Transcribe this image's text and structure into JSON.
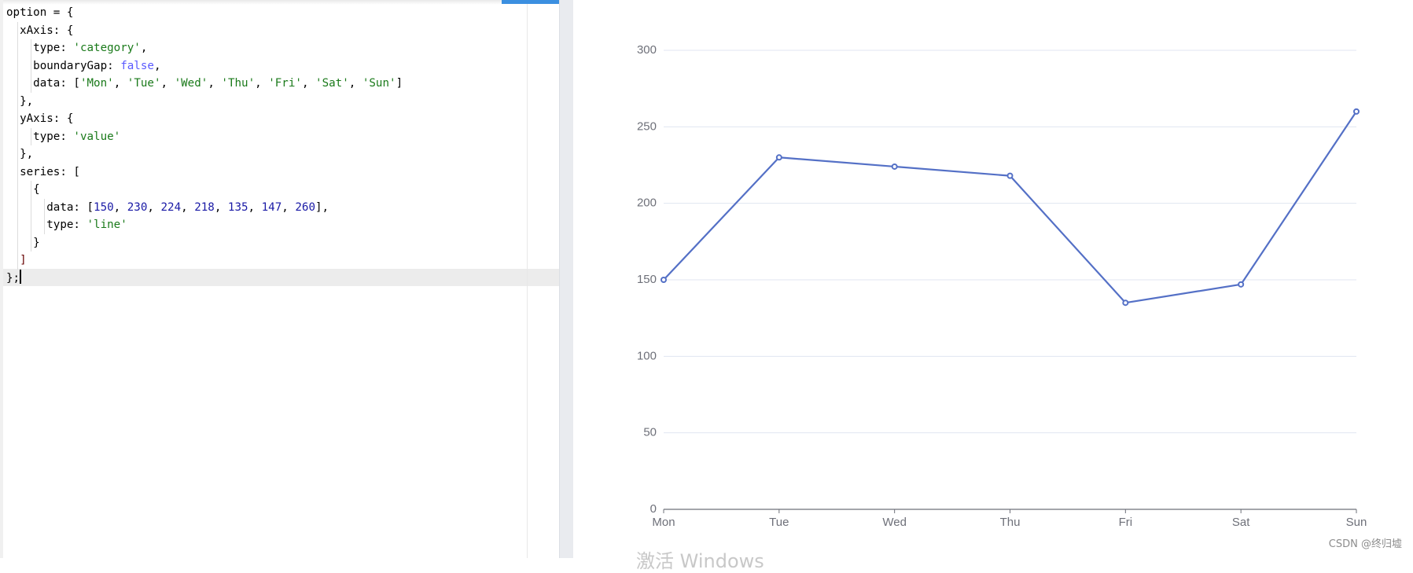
{
  "editor": {
    "code_lines": [
      [
        {
          "t": "option = {"
        }
      ],
      [
        {
          "t": "  xAxis: {"
        }
      ],
      [
        {
          "t": "    type: "
        },
        {
          "t": "'category'",
          "c": "str"
        },
        {
          "t": ","
        }
      ],
      [
        {
          "t": "    boundaryGap: "
        },
        {
          "t": "false",
          "c": "kw"
        },
        {
          "t": ","
        }
      ],
      [
        {
          "t": "    data: ["
        },
        {
          "t": "'Mon'",
          "c": "str"
        },
        {
          "t": ", "
        },
        {
          "t": "'Tue'",
          "c": "str"
        },
        {
          "t": ", "
        },
        {
          "t": "'Wed'",
          "c": "str"
        },
        {
          "t": ", "
        },
        {
          "t": "'Thu'",
          "c": "str"
        },
        {
          "t": ", "
        },
        {
          "t": "'Fri'",
          "c": "str"
        },
        {
          "t": ", "
        },
        {
          "t": "'Sat'",
          "c": "str"
        },
        {
          "t": ", "
        },
        {
          "t": "'Sun'",
          "c": "str"
        },
        {
          "t": "]"
        }
      ],
      [
        {
          "t": "  },"
        }
      ],
      [
        {
          "t": "  yAxis: {"
        }
      ],
      [
        {
          "t": "    type: "
        },
        {
          "t": "'value'",
          "c": "str"
        }
      ],
      [
        {
          "t": "  },"
        }
      ],
      [
        {
          "t": "  series: ["
        }
      ],
      [
        {
          "t": "    {"
        }
      ],
      [
        {
          "t": "      data: ["
        },
        {
          "t": "150",
          "c": "num"
        },
        {
          "t": ", "
        },
        {
          "t": "230",
          "c": "num"
        },
        {
          "t": ", "
        },
        {
          "t": "224",
          "c": "num"
        },
        {
          "t": ", "
        },
        {
          "t": "218",
          "c": "num"
        },
        {
          "t": ", "
        },
        {
          "t": "135",
          "c": "num"
        },
        {
          "t": ", "
        },
        {
          "t": "147",
          "c": "num"
        },
        {
          "t": ", "
        },
        {
          "t": "260",
          "c": "num"
        },
        {
          "t": "],"
        }
      ],
      [
        {
          "t": "      type: "
        },
        {
          "t": "'line'",
          "c": "str"
        }
      ],
      [
        {
          "t": "    }"
        }
      ],
      [
        {
          "t": "  "
        },
        {
          "t": "]",
          "c": "br"
        }
      ],
      [
        {
          "t": "};"
        }
      ]
    ],
    "indent_guide_levels": [
      0,
      1,
      2,
      2,
      2,
      1,
      1,
      2,
      1,
      1,
      2,
      3,
      3,
      2,
      1,
      0
    ]
  },
  "chart_data": {
    "type": "line",
    "categories": [
      "Mon",
      "Tue",
      "Wed",
      "Thu",
      "Fri",
      "Sat",
      "Sun"
    ],
    "series": [
      {
        "values": [
          150,
          230,
          224,
          218,
          135,
          147,
          260
        ]
      }
    ],
    "y_ticks": [
      0,
      50,
      100,
      150,
      200,
      250,
      300
    ],
    "ylim": [
      0,
      300
    ],
    "grid": true,
    "boundary_gap": false,
    "colors": {
      "line": "#5470c6",
      "grid": "#e0e6f1",
      "axis": "#6e7079",
      "label": "#6e7079"
    }
  },
  "watermark": "CSDN @终归墟",
  "os_overlay_text": "激活 Windows"
}
